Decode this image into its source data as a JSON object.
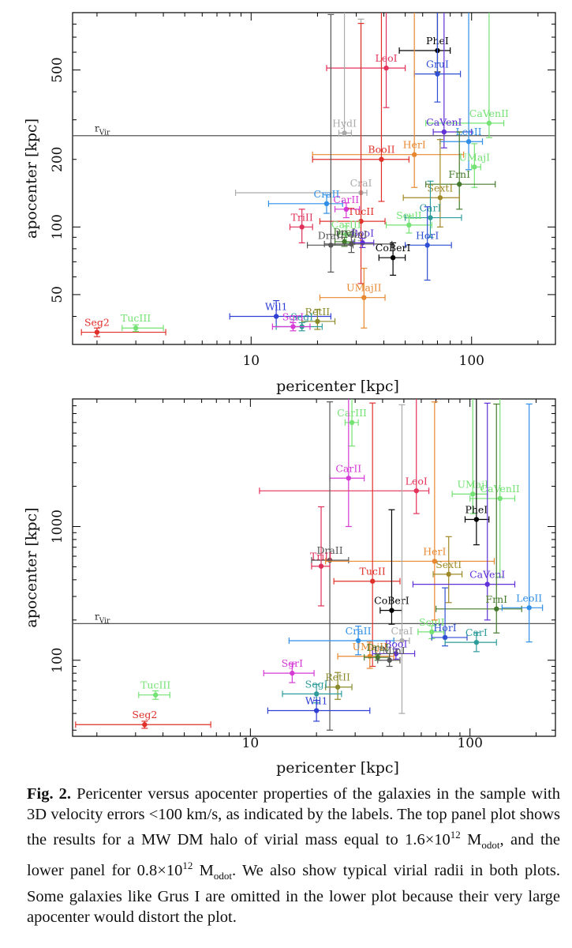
{
  "caption": {
    "label": "Fig. 2.",
    "text": "Pericenter versus apocenter properties of the galaxies in the sample with 3D velocity errors <100 km/s, as indicated by the labels. The top panel plot shows the results for a MW DM halo of virial mass equal to 1.6×10¹² Modot, and the lower panel for 0.8×10¹² Modot. We also show typical virial radii in both plots. Some galaxies like Grus I are omitted in the lower plot because their very large apocenter would distort the plot."
  },
  "chart_data": [
    {
      "type": "scatter",
      "panel": "top",
      "xlabel": "pericenter [kpc]",
      "ylabel": "apocenter [kpc]",
      "xscale": "log",
      "yscale": "log",
      "xlim": [
        1.55,
        240
      ],
      "ylim": [
        30,
        900
      ],
      "xticks": [
        10,
        100
      ],
      "xtick_labels": [
        "10",
        "100"
      ],
      "yticks": [
        50,
        100,
        200,
        500
      ],
      "ytick_labels": [
        "50",
        "100",
        "200",
        "500"
      ],
      "hline": {
        "y": 255,
        "label": "r_Vir"
      },
      "points": [
        {
          "name": "PheI",
          "x": 70,
          "y": 610,
          "xerr": [
            23,
            10
          ],
          "yerr": [
            120,
            500
          ],
          "color": "#000000"
        },
        {
          "name": "LeoI",
          "x": 41,
          "y": 510,
          "xerr": [
            19,
            9
          ],
          "yerr": [
            170,
            500
          ],
          "color": "#e4325a"
        },
        {
          "name": "GruI",
          "x": 70,
          "y": 480,
          "xerr": [
            15,
            19
          ],
          "yerr": [
            120,
            500
          ],
          "color": "#2f4fd4"
        },
        {
          "name": "CaVenII",
          "x": 120,
          "y": 290,
          "xerr": [
            58,
            20
          ],
          "yerr": [
            40,
            700
          ],
          "color": "#74e274"
        },
        {
          "name": "CaVenI",
          "x": 75,
          "y": 265,
          "xerr": [
            8,
            25
          ],
          "yerr": [
            40,
            700
          ],
          "color": "#6030d8"
        },
        {
          "name": "LeoII",
          "x": 97,
          "y": 240,
          "xerr": [
            25,
            15
          ],
          "yerr": [
            60,
            700
          ],
          "color": "#2f8fe8"
        },
        {
          "name": "HydI",
          "x": 26.5,
          "y": 262,
          "xerr": [
            1.5,
            2
          ],
          "yerr": [
            8,
            800
          ],
          "color": "#aaaaaa"
        },
        {
          "name": "HerI",
          "x": 55,
          "y": 210,
          "xerr": [
            36,
            37
          ],
          "yerr": [
            60,
            700
          ],
          "color": "#e88830"
        },
        {
          "name": "BooII",
          "x": 39,
          "y": 200,
          "xerr": [
            20,
            13
          ],
          "yerr": [
            70,
            700
          ],
          "color": "#e0302a"
        },
        {
          "name": "UMajI",
          "x": 103,
          "y": 185,
          "xerr": [
            3,
            7
          ],
          "yerr": [
            35,
            50
          ],
          "color": "#74e274"
        },
        {
          "name": "FrnI",
          "x": 88,
          "y": 155,
          "xerr": [
            26,
            40
          ],
          "yerr": [
            35,
            110
          ],
          "color": "#447a2c"
        },
        {
          "name": "SextI",
          "x": 72,
          "y": 135,
          "xerr": [
            23,
            16
          ],
          "yerr": [
            35,
            110
          ],
          "color": "#a08a28"
        },
        {
          "name": "CraI",
          "x": 31.5,
          "y": 142,
          "xerr": [
            23,
            2
          ],
          "yerr": [
            55,
            700
          ],
          "color": "#aaaaaa"
        },
        {
          "name": "CraII",
          "x": 22,
          "y": 127,
          "xerr": [
            10,
            4
          ],
          "yerr": [
            12,
            12
          ],
          "color": "#2f8fe8"
        },
        {
          "name": "CarII",
          "x": 27,
          "y": 120,
          "xerr": [
            3,
            4
          ],
          "yerr": [
            10,
            8
          ],
          "color": "#d63ad6"
        },
        {
          "name": "TucII",
          "x": 31.5,
          "y": 106,
          "xerr": [
            11,
            9
          ],
          "yerr": [
            50,
            700
          ],
          "color": "#e0302a"
        },
        {
          "name": "TriII",
          "x": 17,
          "y": 100,
          "xerr": [
            2,
            2
          ],
          "yerr": [
            15,
            20
          ],
          "color": "#e0305a"
        },
        {
          "name": "CarI",
          "x": 65,
          "y": 110,
          "xerr": [
            15,
            25
          ],
          "yerr": [
            20,
            50
          ],
          "color": "#2f9c9c"
        },
        {
          "name": "SculI",
          "x": 52,
          "y": 102,
          "xerr": [
            11,
            14
          ],
          "yerr": [
            8,
            10
          ],
          "color": "#74e274"
        },
        {
          "name": "CarIII",
          "x": 27,
          "y": 93,
          "xerr": [
            2,
            2
          ],
          "yerr": [
            8,
            8
          ],
          "color": "#74e274"
        },
        {
          "name": "DraI",
          "x": 26.5,
          "y": 86,
          "xerr": [
            2.5,
            3
          ],
          "yerr": [
            4,
            4
          ],
          "color": "#447a2c"
        },
        {
          "name": "BooI",
          "x": 32,
          "y": 85,
          "xerr": [
            3,
            4
          ],
          "yerr": [
            4,
            4
          ],
          "color": "#6030d8"
        },
        {
          "name": "DraII",
          "x": 23,
          "y": 83,
          "xerr": [
            5,
            6
          ],
          "yerr": [
            20,
            800
          ],
          "color": "#555555"
        },
        {
          "name": "UMinI",
          "x": 28.5,
          "y": 84,
          "xerr": [
            7,
            15
          ],
          "yerr": [
            7,
            7
          ],
          "color": "#555555"
        },
        {
          "name": "HorI",
          "x": 63,
          "y": 83,
          "xerr": [
            13,
            18
          ],
          "yerr": [
            25,
            40
          ],
          "color": "#2f4fd4"
        },
        {
          "name": "CoBerI",
          "x": 44,
          "y": 73,
          "xerr": [
            6,
            6
          ],
          "yerr": [
            12,
            12
          ],
          "color": "#000000"
        },
        {
          "name": "UMajII",
          "x": 32.5,
          "y": 48.5,
          "xerr": [
            12,
            8
          ],
          "yerr": [
            13,
            17
          ],
          "color": "#e88830"
        },
        {
          "name": "Wil1",
          "x": 13,
          "y": 40,
          "xerr": [
            5,
            10
          ],
          "yerr": [
            4,
            7
          ],
          "color": "#2f3fd4"
        },
        {
          "name": "RetII",
          "x": 20,
          "y": 38,
          "xerr": [
            3,
            4
          ],
          "yerr": [
            3,
            5
          ],
          "color": "#8a8a2a"
        },
        {
          "name": "SegI",
          "x": 17,
          "y": 36,
          "xerr": [
            4,
            4
          ],
          "yerr": [
            1.5,
            1.5
          ],
          "color": "#2f9c9c"
        },
        {
          "name": "SgrI",
          "x": 15.5,
          "y": 36,
          "xerr": [
            3,
            3
          ],
          "yerr": [
            1.5,
            1.5
          ],
          "color": "#d63ad6"
        },
        {
          "name": "Seg2",
          "x": 2.0,
          "y": 34,
          "xerr": [
            0.3,
            2.1
          ],
          "yerr": [
            1.5,
            1.5
          ],
          "color": "#e0302a"
        },
        {
          "name": "TucIII",
          "x": 3.0,
          "y": 35.5,
          "xerr": [
            0.4,
            1.0
          ],
          "yerr": [
            1.2,
            1.2
          ],
          "color": "#74e274"
        }
      ]
    },
    {
      "type": "scatter",
      "panel": "bottom",
      "xlabel": "pericenter [kpc]",
      "ylabel": "apocenter [kpc]",
      "xscale": "log",
      "yscale": "log",
      "xlim": [
        1.55,
        245
      ],
      "ylim": [
        27,
        9000
      ],
      "xticks": [
        10,
        100
      ],
      "xtick_labels": [
        "10",
        "100"
      ],
      "yticks": [
        100,
        1000
      ],
      "ytick_labels": [
        "100",
        "1000"
      ],
      "hline": {
        "y": 188,
        "label": "r_Vir"
      },
      "points": [
        {
          "name": "CarIII",
          "x": 29,
          "y": 6000,
          "xerr": [
            2,
            2
          ],
          "yerr": [
            2000,
            3000
          ],
          "color": "#74e274"
        },
        {
          "name": "UMajI",
          "x": 103,
          "y": 1750,
          "xerr": [
            20,
            17
          ],
          "yerr": [
            500,
            8000
          ],
          "color": "#74e274"
        },
        {
          "name": "CaVenII",
          "x": 137,
          "y": 1620,
          "xerr": [
            37,
            23
          ],
          "yerr": [
            1200,
            8000
          ],
          "color": "#74e274"
        },
        {
          "name": "CarII",
          "x": 28,
          "y": 2300,
          "xerr": [
            5,
            5
          ],
          "yerr": [
            1300,
            8000
          ],
          "color": "#d63ad6"
        },
        {
          "name": "LeoI",
          "x": 57,
          "y": 1850,
          "xerr": [
            46,
            8
          ],
          "yerr": [
            600,
            8000
          ],
          "color": "#e4325a"
        },
        {
          "name": "PheI",
          "x": 107,
          "y": 1130,
          "xerr": [
            12,
            15
          ],
          "yerr": [
            400,
            8000
          ],
          "color": "#000000"
        },
        {
          "name": "DraII",
          "x": 23,
          "y": 560,
          "xerr": [
            4,
            5
          ],
          "yerr": [
            530,
            8000
          ],
          "color": "#555555"
        },
        {
          "name": "TriII",
          "x": 21,
          "y": 505,
          "xerr": [
            2,
            2
          ],
          "yerr": [
            250,
            900
          ],
          "color": "#e0305a"
        },
        {
          "name": "HerI",
          "x": 69,
          "y": 550,
          "xerr": [
            47,
            60
          ],
          "yerr": [
            350,
            8000
          ],
          "color": "#e88830"
        },
        {
          "name": "SextI",
          "x": 80,
          "y": 440,
          "xerr": [
            12,
            12
          ],
          "yerr": [
            170,
            400
          ],
          "color": "#a08a28"
        },
        {
          "name": "TucII",
          "x": 36,
          "y": 390,
          "xerr": [
            12,
            12
          ],
          "yerr": [
            300,
            8000
          ],
          "color": "#e0302a"
        },
        {
          "name": "CaVenI",
          "x": 120,
          "y": 370,
          "xerr": [
            65,
            40
          ],
          "yerr": [
            170,
            8000
          ],
          "color": "#6030d8"
        },
        {
          "name": "FrnI",
          "x": 132,
          "y": 242,
          "xerr": [
            62,
            40
          ],
          "yerr": [
            82,
            8000
          ],
          "color": "#447a2c"
        },
        {
          "name": "LeoII",
          "x": 186,
          "y": 247,
          "xerr": [
            46,
            28
          ],
          "yerr": [
            110,
            8000
          ],
          "color": "#2f8fe8"
        },
        {
          "name": "CoBerI",
          "x": 44,
          "y": 236,
          "xerr": [
            5,
            5
          ],
          "yerr": [
            50,
            1100
          ],
          "color": "#000000"
        },
        {
          "name": "SculI",
          "x": 67,
          "y": 163,
          "xerr": [
            9,
            9
          ],
          "yerr": [
            18,
            18
          ],
          "color": "#74e274"
        },
        {
          "name": "CraI",
          "x": 49,
          "y": 140,
          "xerr": [
            4,
            4
          ],
          "yerr": [
            100,
            8000
          ],
          "color": "#aaaaaa"
        },
        {
          "name": "CraII",
          "x": 31,
          "y": 140,
          "xerr": [
            16,
            14
          ],
          "yerr": [
            30,
            40
          ],
          "color": "#2f8fe8"
        },
        {
          "name": "HorI",
          "x": 77,
          "y": 148,
          "xerr": [
            10,
            20
          ],
          "yerr": [
            20,
            200
          ],
          "color": "#2f4fd4"
        },
        {
          "name": "CarI",
          "x": 107,
          "y": 136,
          "xerr": [
            30,
            25
          ],
          "yerr": [
            20,
            25
          ],
          "color": "#2f9c9c"
        },
        {
          "name": "BooI",
          "x": 46,
          "y": 112,
          "xerr": [
            10,
            10
          ],
          "yerr": [
            10,
            10
          ],
          "color": "#6030d8"
        },
        {
          "name": "UMajII",
          "x": 35,
          "y": 107,
          "xerr": [
            10,
            10
          ],
          "yerr": [
            20,
            30
          ],
          "color": "#e88830"
        },
        {
          "name": "DraI",
          "x": 38,
          "y": 105,
          "xerr": [
            5,
            5
          ],
          "yerr": [
            5,
            5
          ],
          "color": "#447a2c"
        },
        {
          "name": "UMinI",
          "x": 43,
          "y": 100,
          "xerr": [
            5,
            5
          ],
          "yerr": [
            10,
            12
          ],
          "color": "#555555"
        },
        {
          "name": "SgrI",
          "x": 15.5,
          "y": 80,
          "xerr": [
            4,
            4
          ],
          "yerr": [
            12,
            14
          ],
          "color": "#d63ad6"
        },
        {
          "name": "RetII",
          "x": 25,
          "y": 63,
          "xerr": [
            3,
            4
          ],
          "yerr": [
            12,
            18
          ],
          "color": "#8a8a2a"
        },
        {
          "name": "SegI",
          "x": 20,
          "y": 56,
          "xerr": [
            6,
            6
          ],
          "yerr": [
            8,
            10
          ],
          "color": "#2f9c9c"
        },
        {
          "name": "Wil1",
          "x": 20,
          "y": 42,
          "xerr": [
            8,
            15
          ],
          "yerr": [
            7,
            8
          ],
          "color": "#2f3fd4"
        },
        {
          "name": "TucIII",
          "x": 3.7,
          "y": 55,
          "xerr": [
            0.6,
            0.6
          ],
          "yerr": [
            4,
            4
          ],
          "color": "#74e274"
        },
        {
          "name": "Seg2",
          "x": 3.3,
          "y": 33,
          "xerr": [
            1.7,
            3.3
          ],
          "yerr": [
            2,
            2
          ],
          "color": "#e0302a"
        }
      ]
    }
  ]
}
